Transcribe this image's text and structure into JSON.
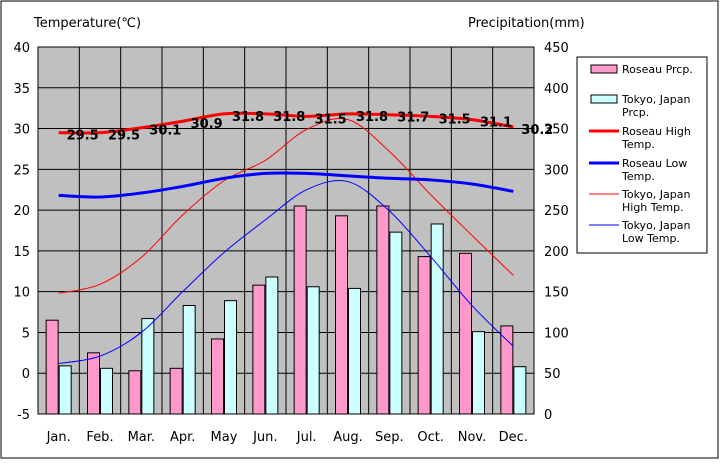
{
  "chart_data": {
    "type": "bar",
    "ylabel": "Temperature(℃)",
    "y2label": "Precipitation(mm)",
    "ylim": [
      -5,
      40
    ],
    "y2lim": [
      0,
      450
    ],
    "yticks": [
      "-5",
      "0",
      "5",
      "10",
      "15",
      "20",
      "25",
      "30",
      "35",
      "40"
    ],
    "y2ticks": [
      "0",
      "50",
      "100",
      "150",
      "200",
      "250",
      "300",
      "350",
      "400",
      "450"
    ],
    "grid": true,
    "legend_position": "right",
    "categories": [
      "Jan.",
      "Feb.",
      "Mar.",
      "Apr.",
      "May",
      "Jun.",
      "Jul.",
      "Aug.",
      "Sep.",
      "Oct.",
      "Nov.",
      "Dec."
    ],
    "series": [
      {
        "name": "Roseau Prcp.",
        "kind": "bar",
        "axis": "right",
        "color": "#ff99cc",
        "values": [
          115,
          75,
          53,
          56,
          92,
          158,
          255,
          243,
          255,
          193,
          197,
          108
        ]
      },
      {
        "name": "Tokyo, Japan Prcp.",
        "kind": "bar",
        "axis": "right",
        "color": "#ccffff",
        "values": [
          59,
          56,
          117,
          133,
          139,
          168,
          156,
          154,
          223,
          233,
          101,
          58
        ]
      },
      {
        "name": "Roseau High Temp.",
        "kind": "line",
        "axis": "left",
        "color": "#ff0000",
        "width": "thick",
        "values": [
          29.5,
          29.5,
          30.1,
          30.9,
          31.8,
          31.8,
          31.5,
          31.8,
          31.7,
          31.5,
          31.1,
          30.2
        ],
        "labels": [
          "29.5",
          "29.5",
          "30.1",
          "30.9",
          "31.8",
          "31.8",
          "31.5",
          "31.8",
          "31.7",
          "31.5",
          "31.1",
          "30.2"
        ]
      },
      {
        "name": "Roseau Low Temp.",
        "kind": "line",
        "axis": "left",
        "color": "#0000ff",
        "width": "thick",
        "values": [
          21.8,
          21.6,
          22.1,
          22.9,
          23.9,
          24.5,
          24.5,
          24.2,
          23.9,
          23.7,
          23.2,
          22.3
        ]
      },
      {
        "name": "Tokyo, Japan High Temp.",
        "kind": "line",
        "axis": "left",
        "color": "#ff0000",
        "width": "thin",
        "values": [
          9.8,
          10.9,
          14.2,
          19.4,
          23.6,
          26.1,
          29.9,
          31.1,
          27.2,
          21.9,
          16.9,
          12.0
        ]
      },
      {
        "name": "Tokyo, Japan Low Temp.",
        "kind": "line",
        "axis": "left",
        "color": "#0000ff",
        "width": "thin",
        "values": [
          1.2,
          2.1,
          5.0,
          10.0,
          14.8,
          18.8,
          22.5,
          23.5,
          19.9,
          14.3,
          8.3,
          3.3
        ]
      }
    ]
  }
}
